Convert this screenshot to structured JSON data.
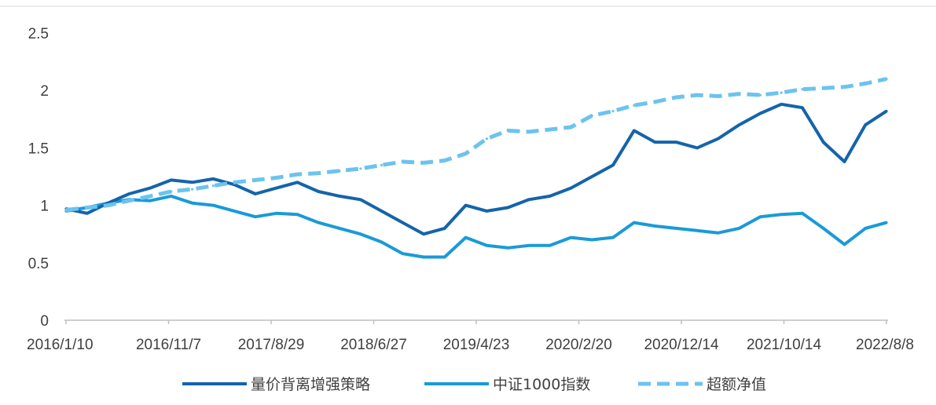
{
  "chart_data": {
    "type": "line",
    "title": "",
    "xlabel": "",
    "ylabel": "",
    "ylim": [
      0,
      2.5
    ],
    "yticks": [
      "0",
      "0.5",
      "1",
      "1.5",
      "2",
      "2.5"
    ],
    "xtick_labels": [
      "2016/1/10",
      "2016/11/7",
      "2017/8/29",
      "2018/6/27",
      "2019/4/23",
      "2020/2/20",
      "2020/12/14",
      "2021/10/14",
      "2022/8/8"
    ],
    "x": [
      "2016/1/10",
      "2016/3/10",
      "2016/5/10",
      "2016/7/10",
      "2016/9/10",
      "2016/11/7",
      "2017/1/10",
      "2017/3/10",
      "2017/5/10",
      "2017/7/10",
      "2017/8/29",
      "2017/11/10",
      "2018/1/10",
      "2018/3/10",
      "2018/6/27",
      "2018/8/10",
      "2018/10/10",
      "2018/12/10",
      "2019/2/10",
      "2019/4/23",
      "2019/6/10",
      "2019/8/10",
      "2019/10/10",
      "2019/12/10",
      "2020/2/20",
      "2020/4/10",
      "2020/6/10",
      "2020/8/10",
      "2020/10/10",
      "2020/12/14",
      "2021/2/10",
      "2021/4/10",
      "2021/6/10",
      "2021/8/10",
      "2021/10/14",
      "2021/12/10",
      "2022/2/10",
      "2022/4/10",
      "2022/6/10",
      "2022/8/8"
    ],
    "series": [
      {
        "name": "量价背离增强策略",
        "style": "solid",
        "color": "#1464AA",
        "values": [
          0.97,
          0.93,
          1.02,
          1.1,
          1.15,
          1.22,
          1.2,
          1.23,
          1.18,
          1.1,
          1.15,
          1.2,
          1.12,
          1.08,
          1.05,
          0.95,
          0.85,
          0.75,
          0.8,
          1.0,
          0.95,
          0.98,
          1.05,
          1.08,
          1.15,
          1.25,
          1.35,
          1.65,
          1.55,
          1.55,
          1.5,
          1.58,
          1.7,
          1.8,
          1.88,
          1.85,
          1.55,
          1.38,
          1.7,
          1.82
        ]
      },
      {
        "name": "中证1000指数",
        "style": "solid",
        "color": "#1A9AD8",
        "values": [
          0.95,
          0.98,
          1.02,
          1.05,
          1.04,
          1.08,
          1.02,
          1.0,
          0.95,
          0.9,
          0.93,
          0.92,
          0.85,
          0.8,
          0.75,
          0.68,
          0.58,
          0.55,
          0.55,
          0.72,
          0.65,
          0.63,
          0.65,
          0.65,
          0.72,
          0.7,
          0.72,
          0.85,
          0.82,
          0.8,
          0.78,
          0.76,
          0.8,
          0.9,
          0.92,
          0.93,
          0.8,
          0.66,
          0.8,
          0.85
        ]
      },
      {
        "name": "超额净值",
        "style": "dashed",
        "color": "#6CC3EE",
        "values": [
          0.96,
          0.98,
          1.0,
          1.04,
          1.08,
          1.12,
          1.14,
          1.17,
          1.2,
          1.22,
          1.24,
          1.27,
          1.28,
          1.3,
          1.32,
          1.35,
          1.38,
          1.37,
          1.39,
          1.45,
          1.58,
          1.65,
          1.64,
          1.66,
          1.68,
          1.78,
          1.82,
          1.87,
          1.9,
          1.94,
          1.96,
          1.95,
          1.97,
          1.96,
          1.98,
          2.01,
          2.02,
          2.03,
          2.06,
          2.1
        ]
      }
    ],
    "legend_position": "bottom",
    "grid": false
  }
}
